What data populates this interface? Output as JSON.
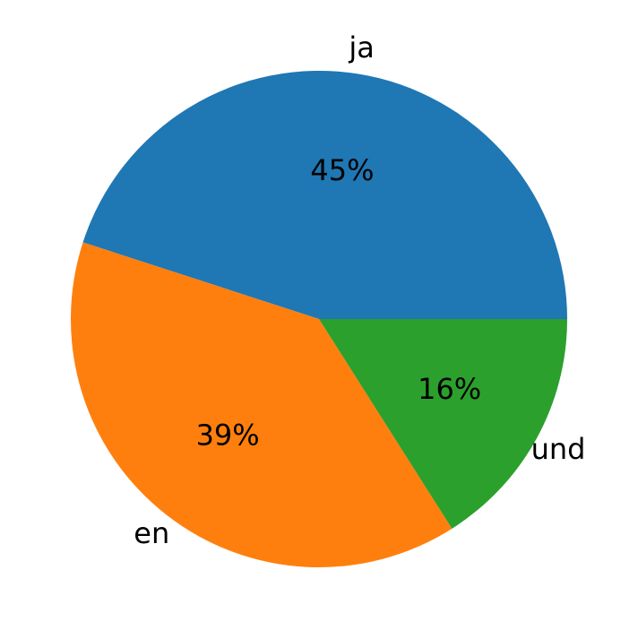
{
  "chart_data": {
    "type": "pie",
    "categories": [
      "ja",
      "en",
      "und"
    ],
    "values": [
      45,
      39,
      16
    ],
    "value_labels": [
      "45%",
      "39%",
      "16%"
    ],
    "colors": [
      "#1f77b4",
      "#ff7f0e",
      "#2ca02c"
    ]
  }
}
